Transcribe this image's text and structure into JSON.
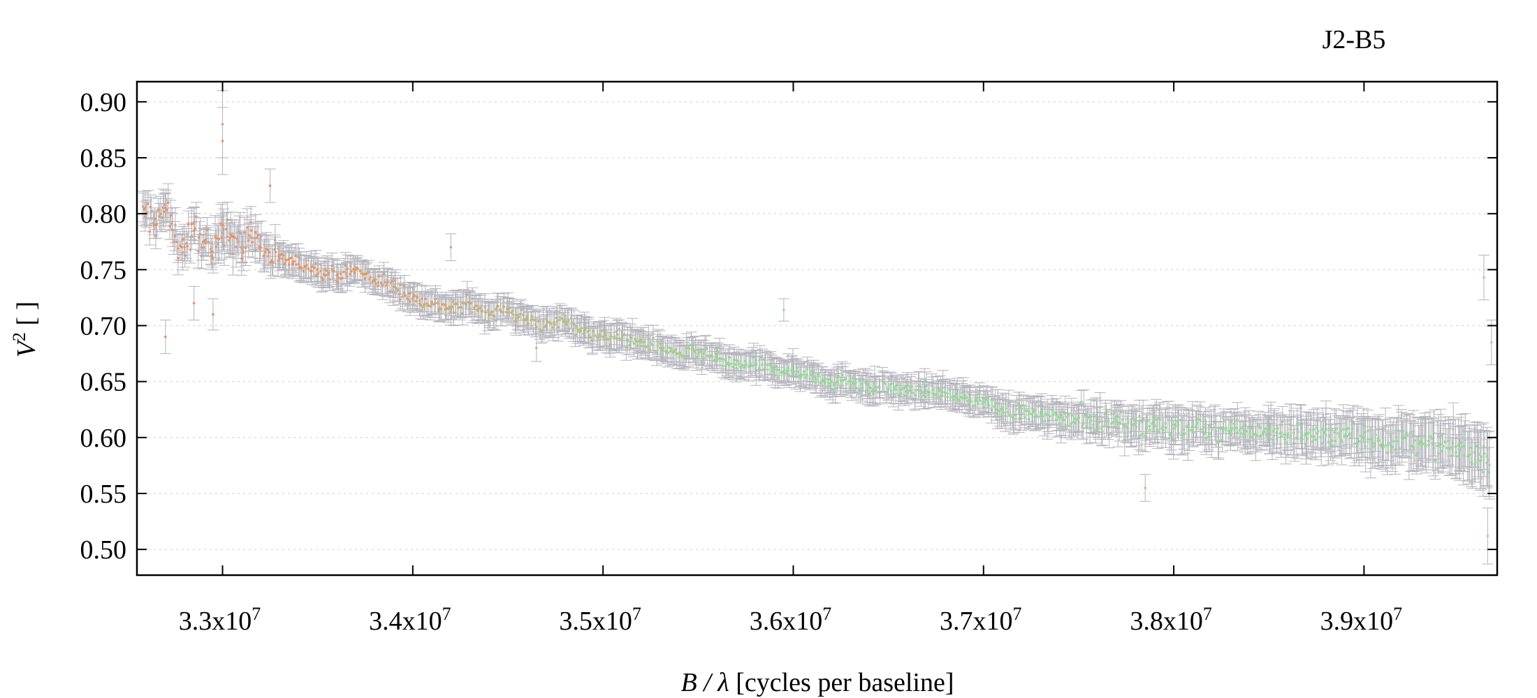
{
  "chart_data": {
    "type": "scatter",
    "title": "J2-B5",
    "xlabel": {
      "var": "B / λ",
      "rest": " [cycles per baseline]"
    },
    "ylabel": {
      "var": "V",
      "sup": "2",
      "rest": " [ ]"
    },
    "xlim": [
      32550000,
      39700000
    ],
    "ylim": [
      0.477,
      0.918
    ],
    "x_ticks": [
      {
        "value": 33000000,
        "mant": "3.3x10",
        "exp": "7"
      },
      {
        "value": 34000000,
        "mant": "3.4x10",
        "exp": "7"
      },
      {
        "value": 35000000,
        "mant": "3.5x10",
        "exp": "7"
      },
      {
        "value": 36000000,
        "mant": "3.6x10",
        "exp": "7"
      },
      {
        "value": 37000000,
        "mant": "3.7x10",
        "exp": "7"
      },
      {
        "value": 38000000,
        "mant": "3.8x10",
        "exp": "7"
      },
      {
        "value": 39000000,
        "mant": "3.9x10",
        "exp": "7"
      }
    ],
    "y_ticks": [
      {
        "value": 0.5,
        "label": "0.50"
      },
      {
        "value": 0.55,
        "label": "0.55"
      },
      {
        "value": 0.6,
        "label": "0.60"
      },
      {
        "value": 0.65,
        "label": "0.65"
      },
      {
        "value": 0.7,
        "label": "0.70"
      },
      {
        "value": 0.75,
        "label": "0.75"
      },
      {
        "value": 0.8,
        "label": "0.80"
      },
      {
        "value": 0.85,
        "label": "0.85"
      },
      {
        "value": 0.9,
        "label": "0.90"
      }
    ],
    "grid": "horizontal dotted",
    "colors": {
      "short_wavelength": "#8fe08f",
      "long_wavelength": "#f0905a",
      "errorbar": "#b4b4bc",
      "grid": "#dddddd",
      "axes": "#000000"
    },
    "series": [
      {
        "error_bars": true,
        "x": [
          32600000,
          32650000,
          32700000,
          32750000,
          32800000,
          32850000,
          32900000,
          32950000,
          33000000,
          33050000,
          33100000,
          33150000,
          33200000,
          33300000,
          33400000,
          33500000,
          33600000,
          33700000,
          33800000,
          33900000,
          34000000,
          34100000,
          34200000,
          34300000,
          34400000,
          34500000,
          34600000,
          34700000,
          34800000,
          34900000,
          35000000,
          35100000,
          35200000,
          35300000,
          35400000,
          35500000,
          35600000,
          35700000,
          35800000,
          35900000,
          36000000,
          36100000,
          36200000,
          36300000,
          36400000,
          36500000,
          36600000,
          36700000,
          36800000,
          36900000,
          37000000,
          37100000,
          37200000,
          37300000,
          37400000,
          37500000,
          37600000,
          37700000,
          37800000,
          37900000,
          38000000,
          38100000,
          38200000,
          38300000,
          38400000,
          38500000,
          38600000,
          38700000,
          38800000,
          38900000,
          39000000,
          39100000,
          39200000,
          39300000,
          39400000,
          39500000,
          39600000,
          39650000
        ],
        "y": [
          0.8,
          0.79,
          0.805,
          0.78,
          0.77,
          0.785,
          0.775,
          0.76,
          0.79,
          0.78,
          0.77,
          0.785,
          0.77,
          0.76,
          0.755,
          0.75,
          0.745,
          0.75,
          0.74,
          0.735,
          0.725,
          0.72,
          0.715,
          0.72,
          0.71,
          0.715,
          0.705,
          0.7,
          0.705,
          0.695,
          0.69,
          0.69,
          0.685,
          0.68,
          0.675,
          0.675,
          0.67,
          0.665,
          0.665,
          0.66,
          0.66,
          0.655,
          0.65,
          0.65,
          0.645,
          0.645,
          0.64,
          0.642,
          0.64,
          0.635,
          0.632,
          0.625,
          0.622,
          0.62,
          0.618,
          0.617,
          0.615,
          0.614,
          0.612,
          0.61,
          0.608,
          0.61,
          0.607,
          0.606,
          0.605,
          0.606,
          0.604,
          0.603,
          0.602,
          0.601,
          0.6,
          0.598,
          0.596,
          0.594,
          0.592,
          0.59,
          0.585,
          0.58
        ],
        "err": [
          0.012,
          0.012,
          0.013,
          0.013,
          0.012,
          0.012,
          0.012,
          0.013,
          0.02,
          0.015,
          0.014,
          0.013,
          0.012,
          0.011,
          0.011,
          0.011,
          0.01,
          0.01,
          0.01,
          0.01,
          0.01,
          0.01,
          0.01,
          0.01,
          0.01,
          0.01,
          0.01,
          0.01,
          0.01,
          0.01,
          0.01,
          0.01,
          0.01,
          0.01,
          0.01,
          0.01,
          0.01,
          0.01,
          0.01,
          0.01,
          0.01,
          0.01,
          0.01,
          0.01,
          0.01,
          0.01,
          0.01,
          0.01,
          0.01,
          0.01,
          0.01,
          0.011,
          0.011,
          0.011,
          0.012,
          0.012,
          0.012,
          0.013,
          0.013,
          0.014,
          0.014,
          0.014,
          0.013,
          0.013,
          0.013,
          0.014,
          0.015,
          0.016,
          0.016,
          0.017,
          0.018,
          0.018,
          0.018,
          0.019,
          0.019,
          0.02,
          0.022,
          0.025
        ]
      },
      {
        "error_bars": true,
        "x": [
          32700000,
          32850000,
          32950000,
          33000000,
          33000000,
          33100000,
          33250000,
          34200000,
          34650000,
          35950000,
          37850000,
          39630000,
          39650000,
          39670000
        ],
        "y": [
          0.69,
          0.72,
          0.71,
          0.88,
          0.865,
          0.76,
          0.825,
          0.77,
          0.68,
          0.714,
          0.555,
          0.743,
          0.512,
          0.685
        ],
        "err": [
          0.015,
          0.015,
          0.014,
          0.03,
          0.03,
          0.015,
          0.015,
          0.012,
          0.012,
          0.01,
          0.012,
          0.02,
          0.025,
          0.02
        ]
      }
    ],
    "dense_fill": {
      "x_start": 32580000,
      "x_end": 39660000,
      "count": 1200
    }
  }
}
